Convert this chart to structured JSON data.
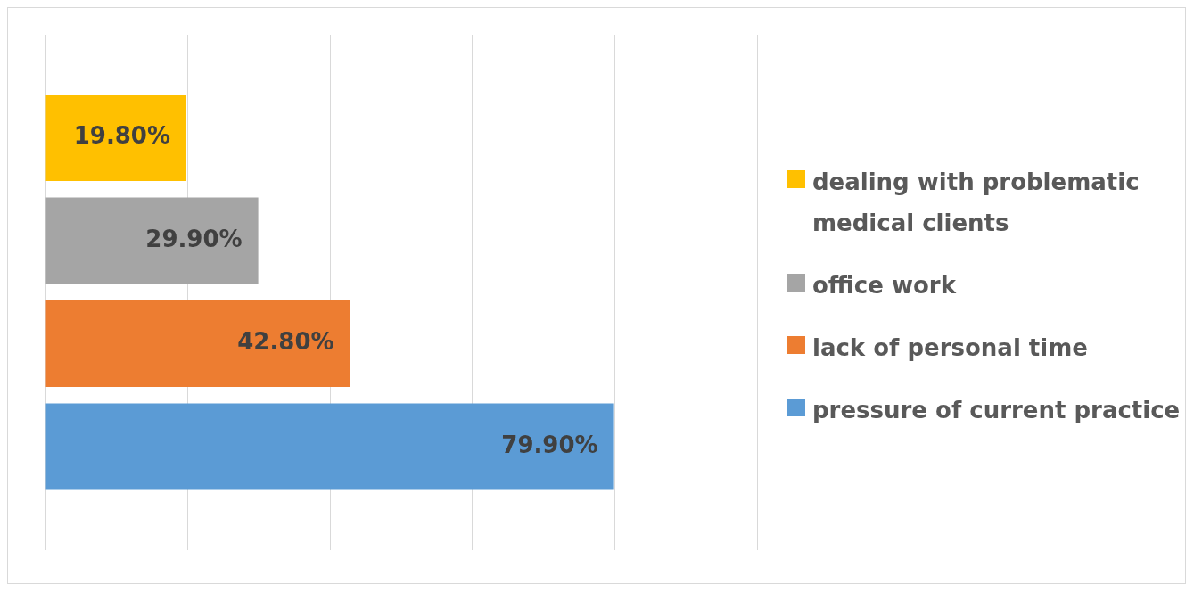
{
  "chart_data": {
    "type": "bar",
    "orientation": "horizontal",
    "categories": [
      null
    ],
    "series": [
      {
        "name": "dealing with problematic medical clients",
        "color": "#ffc000",
        "values": [
          19.8
        ],
        "value_labels": [
          "19.80%"
        ]
      },
      {
        "name": "office work",
        "color": "#a5a5a5",
        "values": [
          29.9
        ],
        "value_labels": [
          "29.90%"
        ]
      },
      {
        "name": "lack of personal time",
        "color": "#ed7d31",
        "values": [
          42.8
        ],
        "value_labels": [
          "42.80%"
        ]
      },
      {
        "name": "pressure of current practice",
        "color": "#5b9bd5",
        "values": [
          79.9
        ],
        "value_labels": [
          "79.90%"
        ]
      }
    ],
    "xlim": [
      0,
      100
    ],
    "xticks": [
      {
        "value": 0,
        "label": null
      },
      {
        "value": 20,
        "label": null
      },
      {
        "value": 40,
        "label": null
      },
      {
        "value": 60,
        "label": null
      },
      {
        "value": 80,
        "label": null
      },
      {
        "value": 100,
        "label": null
      }
    ],
    "grid": "x",
    "legend": "right"
  }
}
